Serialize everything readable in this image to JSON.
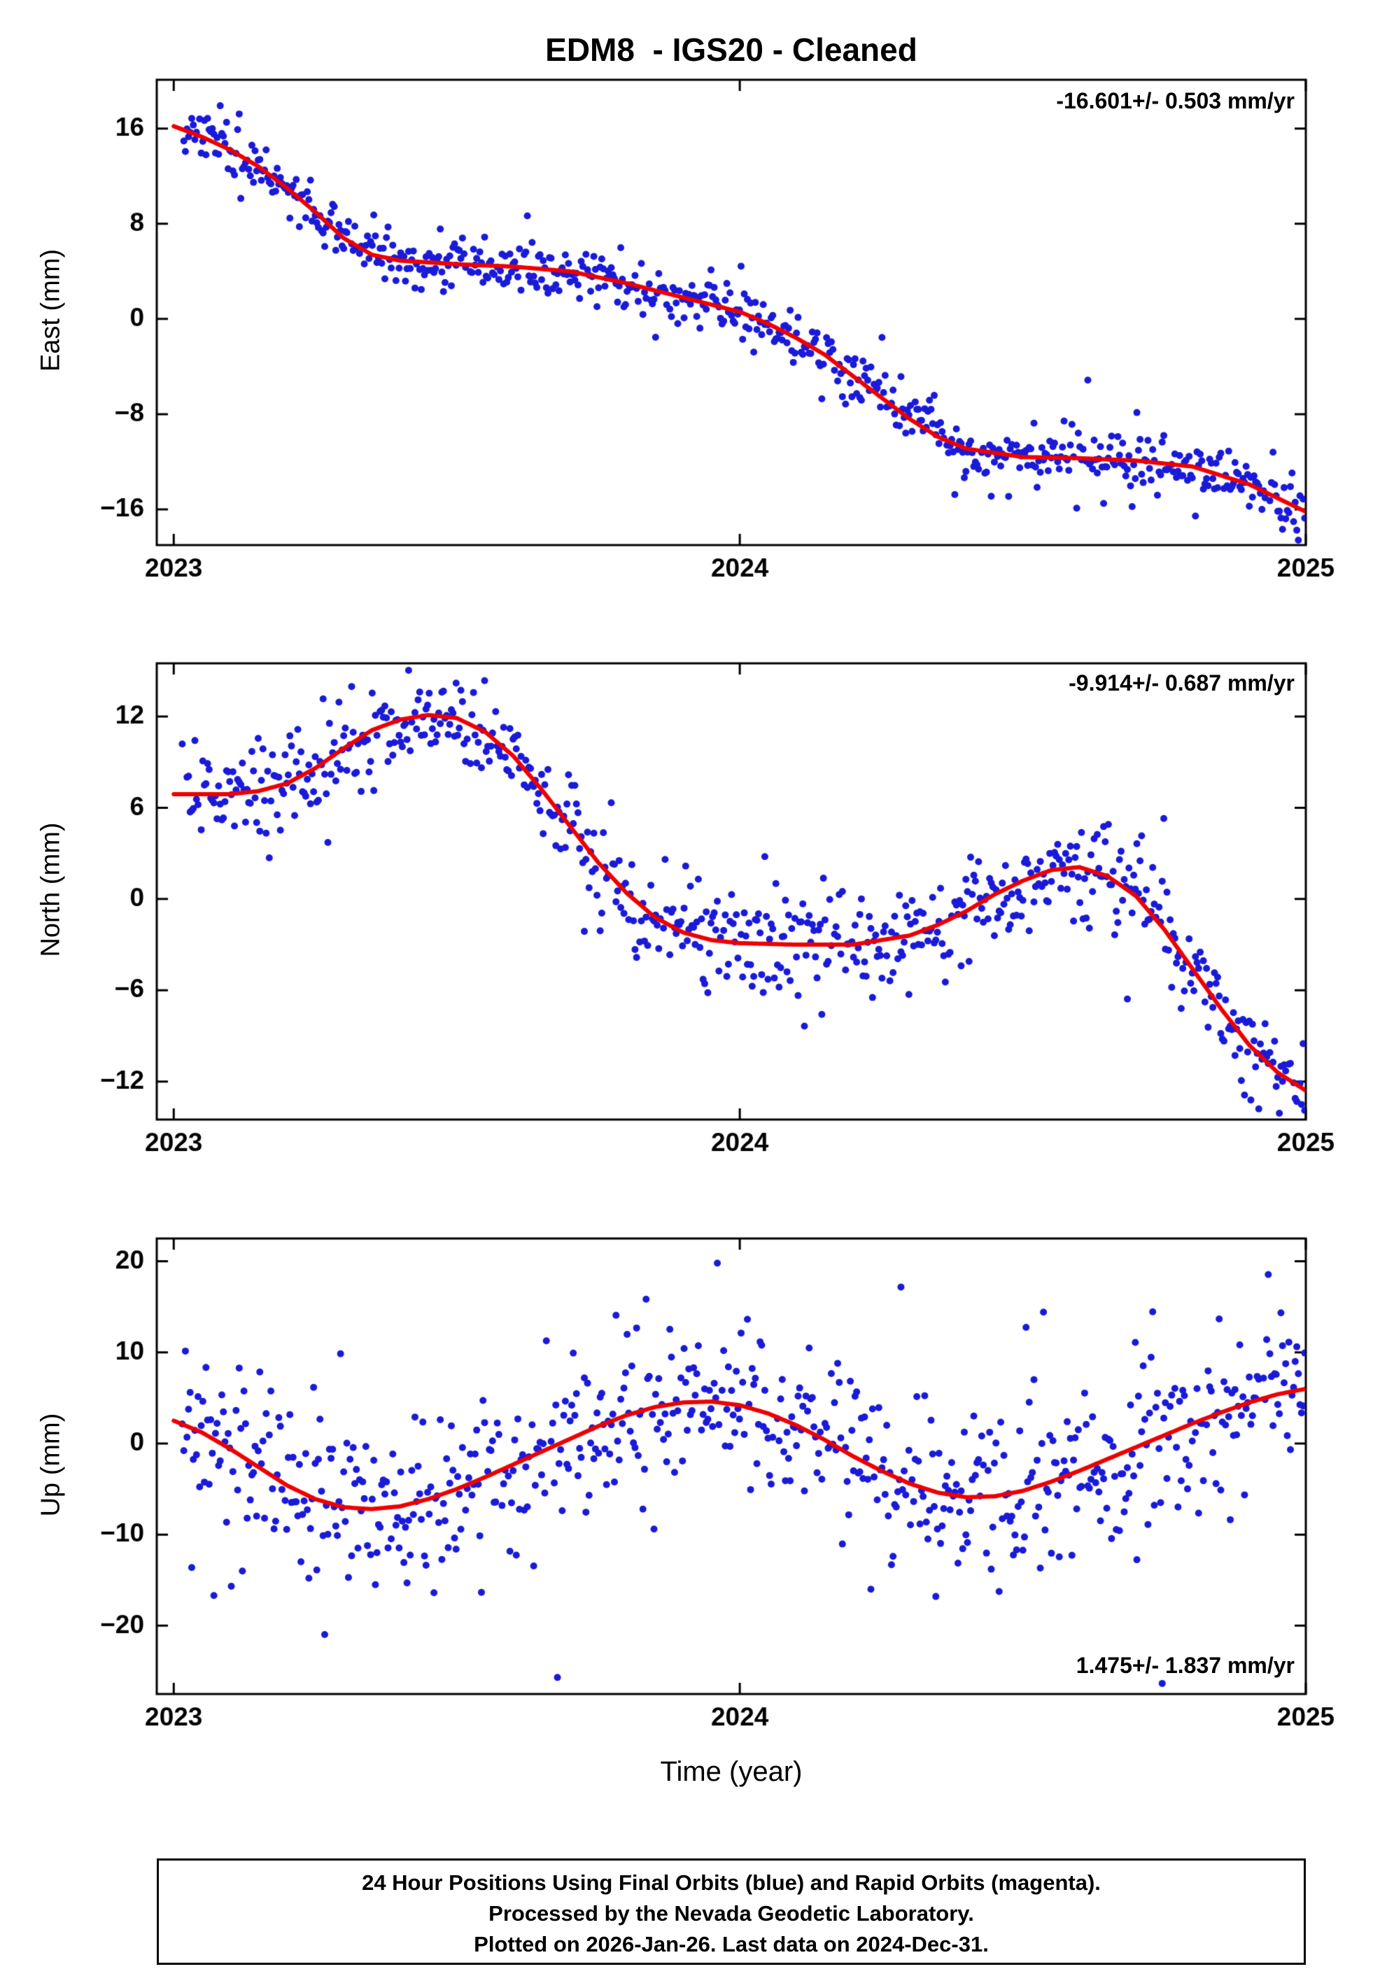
{
  "title": "EDM8  - IGS20 - Cleaned",
  "xlabel": "Time (year)",
  "footer": {
    "line1": "24 Hour Positions Using Final Orbits (blue) and Rapid Orbits (magenta).",
    "line2": "Processed by the Nevada Geodetic Laboratory.",
    "line3": "Plotted on 2026-Jan-26. Last data on 2024-Dec-31."
  },
  "colors": {
    "points": "#1a1ad9",
    "trend": "#ee0000",
    "frame": "#000000"
  },
  "chart_data": [
    {
      "type": "scatter",
      "name": "east",
      "ylabel": "East (mm)",
      "rate_label": "-16.601+/- 0.503 mm/yr",
      "annotation_pos": "top-right",
      "xlim": [
        2022.97,
        2025.0
      ],
      "ylim": [
        -19.0,
        20.1
      ],
      "xticks": [
        2023,
        2024,
        2025
      ],
      "yticks": [
        -16,
        -8,
        0,
        8,
        16
      ],
      "trend": {
        "x": [
          2023.0,
          2023.05,
          2023.1,
          2023.15,
          2023.2,
          2023.25,
          2023.3,
          2023.35,
          2023.4,
          2023.5,
          2023.6,
          2023.7,
          2023.8,
          2023.85,
          2023.9,
          2024.0,
          2024.05,
          2024.1,
          2024.15,
          2024.2,
          2024.25,
          2024.3,
          2024.35,
          2024.4,
          2024.5,
          2024.6,
          2024.7,
          2024.8,
          2024.9,
          2025.0
        ],
        "y": [
          16.2,
          15.3,
          14.2,
          12.8,
          11.0,
          9.0,
          6.8,
          5.4,
          4.9,
          4.6,
          4.4,
          4.0,
          3.0,
          2.4,
          1.8,
          0.6,
          -0.4,
          -1.6,
          -3.0,
          -4.8,
          -6.6,
          -8.4,
          -9.9,
          -10.9,
          -11.6,
          -11.7,
          -11.9,
          -12.4,
          -13.9,
          -16.2
        ]
      },
      "scatter": {
        "n": 710,
        "x_start": 2023.015,
        "x_end": 2024.998,
        "sigma": 1.1,
        "outlier_frac": 0.08,
        "outlier_sigma": 2.3,
        "gap_frac": 0.05,
        "seed": 7
      }
    },
    {
      "type": "scatter",
      "name": "north",
      "ylabel": "North (mm)",
      "rate_label": "-9.914+/- 0.687 mm/yr",
      "annotation_pos": "top-right",
      "xlim": [
        2022.97,
        2025.0
      ],
      "ylim": [
        -14.5,
        15.5
      ],
      "xticks": [
        2023,
        2024,
        2025
      ],
      "yticks": [
        -12,
        -6,
        0,
        6,
        12
      ],
      "trend": {
        "x": [
          2023.0,
          2023.1,
          2023.15,
          2023.2,
          2023.25,
          2023.3,
          2023.35,
          2023.4,
          2023.45,
          2023.5,
          2023.55,
          2023.6,
          2023.65,
          2023.7,
          2023.75,
          2023.8,
          2023.85,
          2023.9,
          2023.95,
          2024.0,
          2024.1,
          2024.2,
          2024.3,
          2024.35,
          2024.4,
          2024.45,
          2024.5,
          2024.55,
          2024.6,
          2024.65,
          2024.7,
          2024.75,
          2024.8,
          2024.85,
          2024.9,
          2024.95,
          2025.0
        ],
        "y": [
          6.9,
          6.9,
          7.1,
          7.6,
          8.6,
          9.9,
          11.1,
          11.8,
          12.1,
          11.9,
          11.0,
          9.4,
          7.2,
          4.8,
          2.4,
          0.4,
          -1.2,
          -2.2,
          -2.7,
          -2.9,
          -3.0,
          -3.0,
          -2.4,
          -1.7,
          -0.8,
          0.3,
          1.2,
          1.9,
          2.1,
          1.5,
          0.2,
          -2.0,
          -4.6,
          -7.2,
          -9.6,
          -11.4,
          -12.6
        ]
      },
      "scatter": {
        "n": 710,
        "x_start": 2023.015,
        "x_end": 2024.998,
        "sigma": 1.5,
        "outlier_frac": 0.08,
        "outlier_sigma": 3.0,
        "gap_frac": 0.05,
        "seed": 13
      }
    },
    {
      "type": "scatter",
      "name": "up",
      "ylabel": "Up (mm)",
      "rate_label": "1.475+/- 1.837 mm/yr",
      "annotation_pos": "bottom-right",
      "xlim": [
        2022.97,
        2025.0
      ],
      "ylim": [
        -27.5,
        22.5
      ],
      "xticks": [
        2023,
        2024,
        2025
      ],
      "yticks": [
        -20,
        -10,
        0,
        10,
        20
      ],
      "trend": {
        "x": [
          2023.0,
          2023.05,
          2023.1,
          2023.15,
          2023.2,
          2023.25,
          2023.3,
          2023.35,
          2023.4,
          2023.45,
          2023.5,
          2023.55,
          2023.6,
          2023.65,
          2023.7,
          2023.75,
          2023.8,
          2023.85,
          2023.9,
          2023.95,
          2024.0,
          2024.05,
          2024.1,
          2024.15,
          2024.2,
          2024.25,
          2024.3,
          2024.35,
          2024.4,
          2024.45,
          2024.5,
          2024.55,
          2024.6,
          2024.65,
          2024.7,
          2024.75,
          2024.8,
          2024.85,
          2024.9,
          2024.95,
          2025.0
        ],
        "y": [
          2.5,
          1.2,
          -0.6,
          -2.6,
          -4.6,
          -6.1,
          -7.0,
          -7.2,
          -6.9,
          -6.1,
          -5.0,
          -3.7,
          -2.3,
          -0.9,
          0.5,
          1.9,
          3.1,
          4.0,
          4.5,
          4.6,
          4.2,
          3.3,
          2.0,
          0.4,
          -1.4,
          -3.0,
          -4.4,
          -5.4,
          -5.9,
          -5.8,
          -5.2,
          -4.2,
          -3.0,
          -1.7,
          -0.4,
          0.9,
          2.2,
          3.4,
          4.5,
          5.4,
          6.0
        ]
      },
      "scatter": {
        "n": 710,
        "x_start": 2023.015,
        "x_end": 2024.998,
        "sigma": 4.5,
        "outlier_frac": 0.15,
        "outlier_sigma": 8.8,
        "gap_frac": 0.05,
        "seed": 29
      }
    }
  ]
}
